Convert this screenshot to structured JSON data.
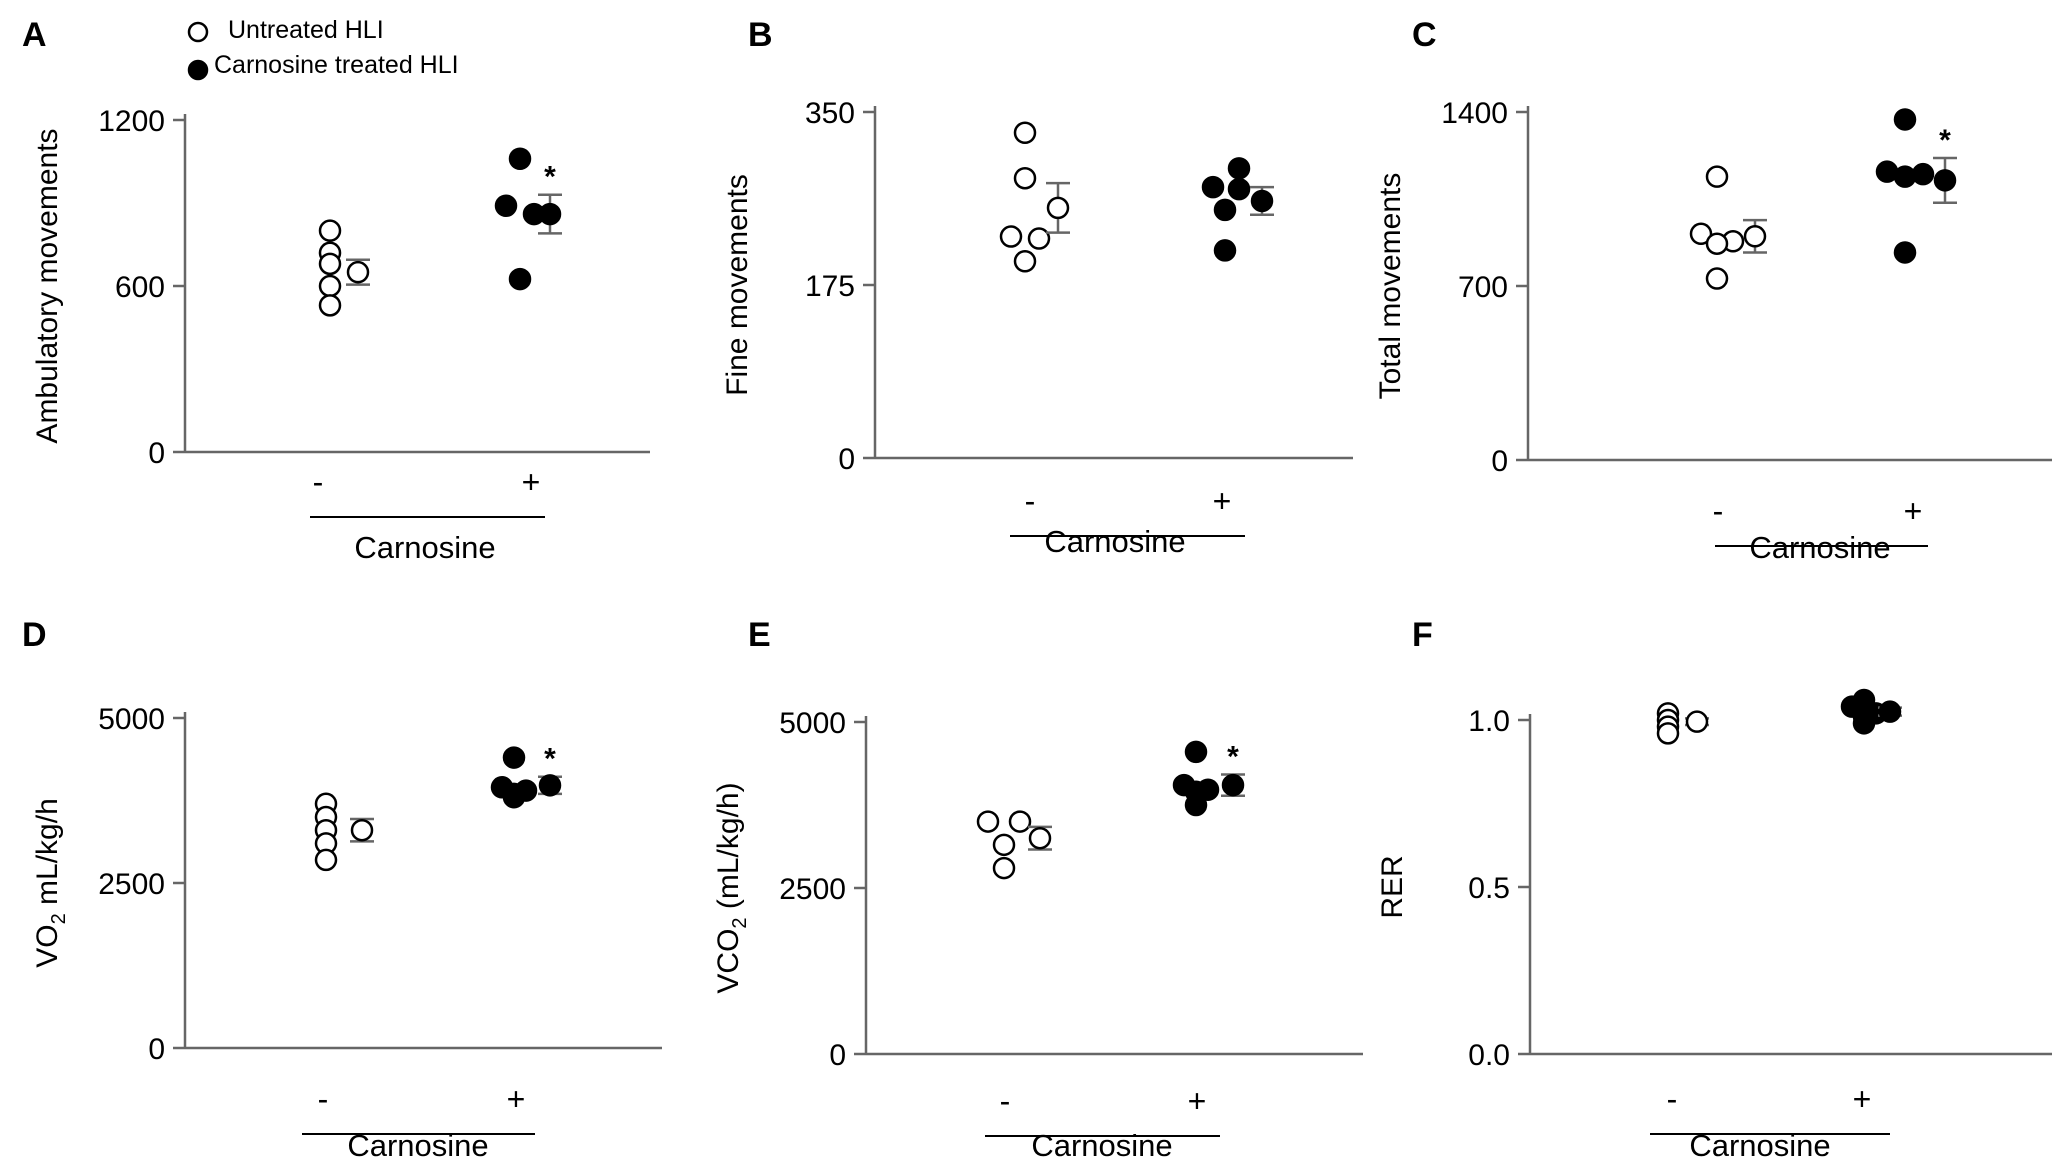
{
  "legend": [
    {
      "label": "Untreated HLI",
      "fill": "open"
    },
    {
      "label": "Carnosine treated HLI",
      "fill": "filled"
    }
  ],
  "colors": {
    "ink": "#000000",
    "axis": "#666666",
    "open_fill": "#ffffff"
  },
  "chart_data": [
    {
      "type": "scatter",
      "letter": "A",
      "ylabel": "Ambulatory movements",
      "xlabel": "Carnosine",
      "ylim": [
        0,
        1200
      ],
      "yticks": [
        "0",
        "600",
        "1200"
      ],
      "categories": [
        "-",
        "+"
      ],
      "series": [
        {
          "name": "Untreated HLI",
          "points": [
            800,
            720,
            680,
            600,
            530
          ],
          "mean": 650,
          "sem": 45,
          "sig": ""
        },
        {
          "name": "Carnosine treated HLI",
          "points": [
            1060,
            890,
            860,
            625
          ],
          "mean": 860,
          "sem": 70,
          "sig": "*"
        }
      ]
    },
    {
      "type": "scatter",
      "letter": "B",
      "ylabel": "Fine movements",
      "xlabel": "Carnosine",
      "ylim": [
        0,
        350
      ],
      "yticks": [
        "0",
        "175",
        "350"
      ],
      "categories": [
        "-",
        "+"
      ],
      "series": [
        {
          "name": "Untreated HLI",
          "points": [
            329,
            283,
            224,
            222,
            199
          ],
          "mean": 253,
          "sem": 25,
          "sig": ""
        },
        {
          "name": "Carnosine treated HLI",
          "points": [
            293,
            274,
            272,
            251,
            210
          ],
          "mean": 260,
          "sem": 14,
          "sig": ""
        }
      ]
    },
    {
      "type": "scatter",
      "letter": "C",
      "ylabel": "Total movements",
      "xlabel": "Carnosine",
      "ylim": [
        0,
        1400
      ],
      "yticks": [
        "0",
        "700",
        "1400"
      ],
      "categories": [
        "-",
        "+"
      ],
      "series": [
        {
          "name": "Untreated HLI",
          "points": [
            1140,
            910,
            880,
            870,
            730
          ],
          "mean": 900,
          "sem": 65,
          "sig": ""
        },
        {
          "name": "Carnosine treated HLI",
          "points": [
            1370,
            1160,
            1150,
            1140,
            835
          ],
          "mean": 1125,
          "sem": 90,
          "sig": "*"
        }
      ]
    },
    {
      "type": "scatter",
      "letter": "D",
      "ylabel": "VO2 mL/kg/h",
      "ylabel_main": "VO",
      "ylabel_sub": "2",
      "ylabel_rest": " mL/kg/h",
      "xlabel": "Carnosine",
      "ylim": [
        0,
        5000
      ],
      "yticks": [
        "0",
        "2500",
        "5000"
      ],
      "categories": [
        "-",
        "+"
      ],
      "series": [
        {
          "name": "Untreated HLI",
          "points": [
            3700,
            3500,
            3300,
            3100,
            2850
          ],
          "mean": 3300,
          "sem": 170,
          "sig": ""
        },
        {
          "name": "Carnosine treated HLI",
          "points": [
            4400,
            3950,
            3900,
            3850,
            3800
          ],
          "mean": 3980,
          "sem": 130,
          "sig": "*"
        }
      ]
    },
    {
      "type": "scatter",
      "letter": "E",
      "ylabel": "VCO2 (mL/kg/h)",
      "ylabel_main": "VCO",
      "ylabel_sub": "2",
      "ylabel_rest": " (mL/kg/h)",
      "xlabel": "Carnosine",
      "ylim": [
        0,
        5000
      ],
      "yticks": [
        "0",
        "2500",
        "5000"
      ],
      "categories": [
        "-",
        "+"
      ],
      "series": [
        {
          "name": "Untreated HLI",
          "points": [
            3500,
            3500,
            3150,
            2800
          ],
          "mean": 3250,
          "sem": 170,
          "sig": ""
        },
        {
          "name": "Carnosine treated HLI",
          "points": [
            4550,
            4050,
            3980,
            3950,
            3750
          ],
          "mean": 4050,
          "sem": 160,
          "sig": "*"
        }
      ]
    },
    {
      "type": "scatter",
      "letter": "F",
      "ylabel": "RER",
      "xlabel": "Carnosine",
      "ylim": [
        0,
        1.0
      ],
      "yticks": [
        "0.0",
        "0.5",
        "1.0"
      ],
      "categories": [
        "-",
        "+"
      ],
      "series": [
        {
          "name": "Untreated HLI",
          "points": [
            1.02,
            1.0,
            0.98,
            0.96
          ],
          "mean": 0.995,
          "sem": 0.01,
          "sig": ""
        },
        {
          "name": "Carnosine treated HLI",
          "points": [
            1.06,
            1.04,
            1.02,
            1.01,
            0.99
          ],
          "mean": 1.025,
          "sem": 0.012,
          "sig": ""
        }
      ]
    }
  ]
}
